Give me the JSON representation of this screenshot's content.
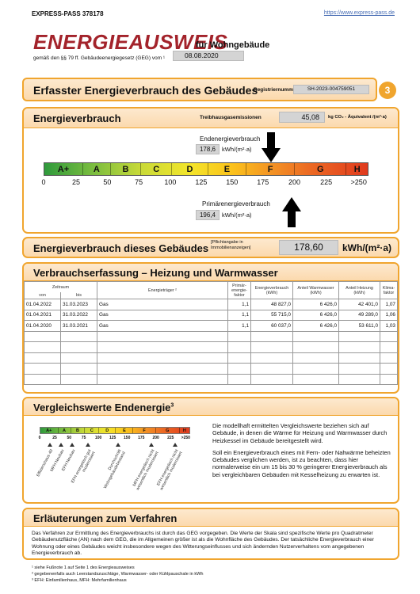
{
  "header": {
    "id": "EXPRESS-PASS 378178",
    "url": "https://www.express-pass.de"
  },
  "title": {
    "main": "ENERGIEAUSWEIS",
    "sub": "für Wohngebäude",
    "law": "gemäß den §§ 79 ff. Gebäudeenergiegesetz (GEG) vom ¹",
    "date": "08.08.2020"
  },
  "section": {
    "title": "Erfasster Energieverbrauch des Gebäudes",
    "reg_label": "Registriernummer:",
    "reg_number": "SH-2023-004759051",
    "page": "3"
  },
  "consumption": {
    "title": "Energieverbrauch",
    "ghg_label": "Treibhausgasemissionen",
    "ghg_value": "45,08",
    "ghg_unit": "kg CO₂ - Äquivalent /(m²·a)",
    "final_label": "Endenergieverbrauch",
    "final_value": "178,6",
    "final_unit": "kWh/(m²·a)",
    "classes": [
      "A+",
      "A",
      "B",
      "C",
      "D",
      "E",
      "F",
      "G",
      "H"
    ],
    "scale": [
      "0",
      "25",
      "50",
      "75",
      "100",
      "125",
      "150",
      "175",
      "200",
      "225",
      ">250"
    ],
    "primary_label": "Primärenergieverbrauch",
    "primary_value": "196,4",
    "primary_unit": "kWh/(m²·a)"
  },
  "building": {
    "title": "Energieverbrauch dieses Gebäudes",
    "note": "[Pflichtangabe in Immobilienanzeigen]",
    "value": "178,60",
    "unit": "kWh/(m²·a)"
  },
  "table": {
    "title": "Verbrauchserfassung – Heizung und Warmwasser",
    "period": "Zeitraum",
    "headers": [
      "von",
      "bis",
      "Energieträger ²",
      "Primär-energie-faktor",
      "Energieverbrauch (kWh)",
      "Anteil Warmwasser (kWh)",
      "Anteil Heizung (kWh)",
      "Klima-faktor"
    ],
    "rows": [
      [
        "01.04.2022",
        "31.03.2023",
        "Gas",
        "1,1",
        "48 827,0",
        "6 426,0",
        "42 401,0",
        "1,07"
      ],
      [
        "01.04.2021",
        "31.03.2022",
        "Gas",
        "1,1",
        "55 715,0",
        "6 426,0",
        "49 289,0",
        "1,06"
      ],
      [
        "01.04.2020",
        "31.03.2021",
        "Gas",
        "1,1",
        "60 037,0",
        "6 426,0",
        "53 611,0",
        "1,03"
      ]
    ]
  },
  "comparison": {
    "title": "Vergleichswerte Endenergie",
    "title_sup": "3",
    "references": [
      "Effizienzhaus 40",
      "MFH Neubau",
      "EFH Neubau",
      "EFH energetisch gut modernisiert",
      "Durchschnitt Wohngebäudebestand",
      "MFH energetisch nicht wesentlich modernisiert",
      "EFH energetisch nicht wesentlich modernisiert"
    ],
    "paragraphs": [
      "Die modellhaft ermittelten Vergleichswerte beziehen sich auf Gebäude, in denen die Wärme für Heizung und Warmwasser durch Heizkessel im Gebäude bereitgestellt wird.",
      "Soll ein Energieverbrauch eines mit Fern- oder Nahwärme beheizten Gebäudes verglichen werden, ist zu beachten, dass hier normalerweise ein um 15 bis 30 % geringerer Energieverbrauch als bei vergleichbaren Gebäuden mit Kesselheizung zu erwarten ist."
    ]
  },
  "explanation": {
    "title": "Erläuterungen zum Verfahren",
    "text": "Das Verfahren zur Ermittlung des Energieverbrauchs ist durch das GEG vorgegeben. Die Werte der Skala sind spezifische Werte pro Quadratmeter Gebäudenutzfläche (AN) nach dem GEG, die im Allgemeinen größer ist als die Wohnfläche des Gebäudes. Der tatsächliche Energieverbrauch einer Wohnung oder eines Gebäudes weicht insbesondere wegen des Witterungseinflusses und sich ändernden Nutzerverhaltens vom angegebenen Energieverbrauch ab."
  },
  "footnotes": [
    "¹ siehe Fußnote 1 auf Seite 1 des Energieausweises",
    "² gegebenenfalls auch Leerstandszuschläge, Warmwasser- oder Kühlpauschale in kWh",
    "³ EFH: Einfamilienhaus, MFH: Mehrfamilienhaus"
  ]
}
